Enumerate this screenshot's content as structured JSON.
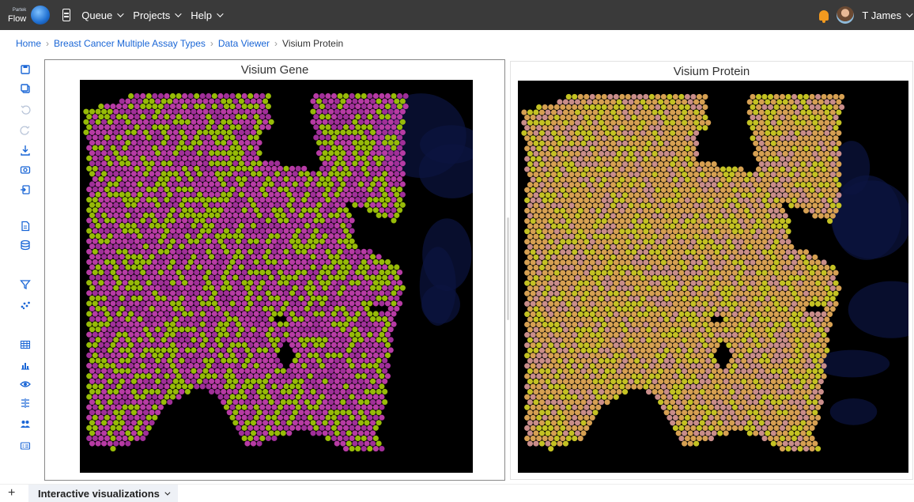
{
  "app": {
    "logo_small": "Partek",
    "logo_text": "Flow"
  },
  "nav": {
    "queue": "Queue",
    "projects": "Projects",
    "help": "Help"
  },
  "user": {
    "name": "T James"
  },
  "breadcrumb": [
    "Home",
    "Breast Cancer Multiple Assay Types",
    "Data Viewer",
    "Visium Protein"
  ],
  "toolbar": [
    {
      "icon": "save-icon"
    },
    {
      "icon": "copy-icon"
    },
    {
      "icon": "undo-icon"
    },
    {
      "icon": "redo-icon"
    },
    {
      "icon": "download-icon"
    },
    {
      "icon": "camera-icon"
    },
    {
      "icon": "import-icon"
    },
    {
      "icon": "document-icon"
    },
    {
      "icon": "database-icon"
    },
    {
      "icon": "filter-icon"
    },
    {
      "icon": "scatter-icon"
    },
    {
      "icon": "table-icon"
    },
    {
      "icon": "bar-chart-icon"
    },
    {
      "icon": "view-icon"
    },
    {
      "icon": "split-icon"
    },
    {
      "icon": "group-icon"
    },
    {
      "icon": "legend-icon"
    }
  ],
  "panels": [
    {
      "title": "Visium Gene",
      "colors": {
        "base": "#b73ba4",
        "alt": "#a02f98",
        "highlight": "#97bb08"
      }
    },
    {
      "title": "Visium Protein",
      "colors": {
        "base": "#d6a052",
        "alt": "#c98d8a",
        "highlight": "#c4c223"
      }
    }
  ],
  "bottom": {
    "add_label": "+",
    "tab_label": "Interactive visualizations"
  }
}
